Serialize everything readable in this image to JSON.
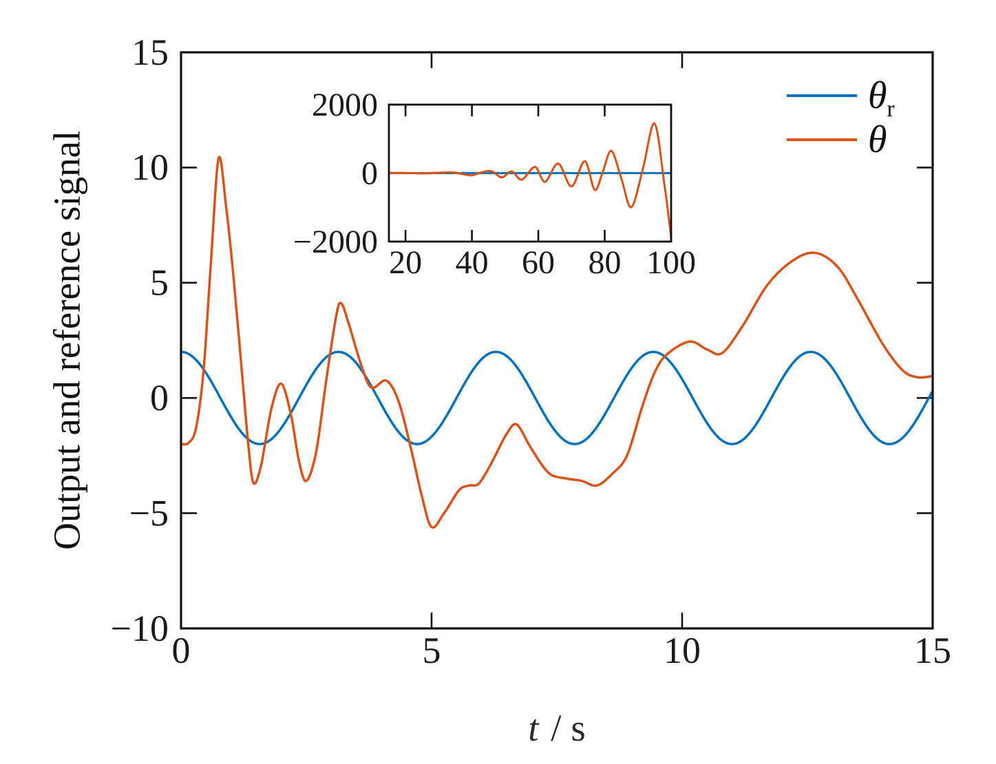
{
  "figure": {
    "ylabel": "Output and reference signal",
    "xlabel_var": "t",
    "xlabel_rest": " / s",
    "background": "#ffffff",
    "axis_color": "#111111"
  },
  "legend": {
    "position": "top-right-inside",
    "frame": false,
    "entries": [
      {
        "label": "θ",
        "subscript": "r",
        "color": "#0072BD",
        "series": "reference"
      },
      {
        "label": "θ",
        "subscript": "",
        "color": "#D95319",
        "series": "output"
      }
    ]
  },
  "chart_data": [
    {
      "id": "main",
      "type": "line",
      "title": "",
      "xlabel": "t / s",
      "ylabel": "Output and reference signal",
      "xlim": [
        0,
        15
      ],
      "ylim": [
        -10,
        15
      ],
      "xticks": [
        0,
        5,
        10,
        15
      ],
      "yticks": [
        15,
        10,
        5,
        0,
        -5,
        -10
      ],
      "grid": false,
      "series": [
        {
          "key": "reference",
          "name": "θr (reference signal)",
          "color": "#0072BD",
          "model": "cosine",
          "amplitude": 2,
          "omega": 2,
          "phase": 0
        },
        {
          "key": "output",
          "name": "θ (output signal)",
          "color": "#D95319",
          "model": "spline",
          "points": [
            [
              0,
              -2.0
            ],
            [
              0.15,
              -1.95
            ],
            [
              0.3,
              -1.3
            ],
            [
              0.45,
              1.2
            ],
            [
              0.6,
              6.0
            ],
            [
              0.75,
              10.4
            ],
            [
              0.9,
              8.3
            ],
            [
              1.05,
              5.2
            ],
            [
              1.2,
              1.5
            ],
            [
              1.35,
              -2.2
            ],
            [
              1.45,
              -3.7
            ],
            [
              1.6,
              -2.9
            ],
            [
              1.8,
              -0.5
            ],
            [
              2.0,
              0.62
            ],
            [
              2.2,
              -0.8
            ],
            [
              2.35,
              -2.7
            ],
            [
              2.5,
              -3.6
            ],
            [
              2.7,
              -2.3
            ],
            [
              2.9,
              0.8
            ],
            [
              3.1,
              3.6
            ],
            [
              3.2,
              4.1
            ],
            [
              3.35,
              3.2
            ],
            [
              3.6,
              1.4
            ],
            [
              3.8,
              0.45
            ],
            [
              4.1,
              0.75
            ],
            [
              4.35,
              -0.2
            ],
            [
              4.6,
              -2.3
            ],
            [
              4.8,
              -4.2
            ],
            [
              5.0,
              -5.6
            ],
            [
              5.25,
              -5.0
            ],
            [
              5.55,
              -4.0
            ],
            [
              5.75,
              -3.8
            ],
            [
              5.95,
              -3.7
            ],
            [
              6.2,
              -2.8
            ],
            [
              6.5,
              -1.55
            ],
            [
              6.7,
              -1.15
            ],
            [
              6.95,
              -2.05
            ],
            [
              7.2,
              -2.9
            ],
            [
              7.4,
              -3.35
            ],
            [
              7.7,
              -3.5
            ],
            [
              8.0,
              -3.6
            ],
            [
              8.3,
              -3.8
            ],
            [
              8.6,
              -3.3
            ],
            [
              8.9,
              -2.5
            ],
            [
              9.2,
              -0.4
            ],
            [
              9.45,
              1.1
            ],
            [
              9.7,
              1.9
            ],
            [
              10.15,
              2.45
            ],
            [
              10.5,
              2.1
            ],
            [
              10.8,
              1.95
            ],
            [
              11.2,
              3.1
            ],
            [
              11.7,
              4.9
            ],
            [
              12.2,
              5.95
            ],
            [
              12.65,
              6.3
            ],
            [
              13.1,
              5.7
            ],
            [
              13.5,
              4.3
            ],
            [
              14.0,
              2.35
            ],
            [
              14.4,
              1.2
            ],
            [
              14.7,
              0.9
            ],
            [
              15,
              0.95
            ]
          ]
        }
      ]
    },
    {
      "id": "inset",
      "type": "line",
      "title": "",
      "xlabel": "",
      "ylabel": "",
      "xlim": [
        15,
        100
      ],
      "ylim": [
        -2000,
        2000
      ],
      "xticks": [
        20,
        40,
        60,
        80,
        100
      ],
      "yticks": [
        2000,
        0,
        -2000
      ],
      "grid": false,
      "series": [
        {
          "key": "reference",
          "name": "θr (reference signal)",
          "color": "#0072BD",
          "model": "cosine",
          "amplitude": 2,
          "omega": 2,
          "phase": 0
        },
        {
          "key": "output",
          "name": "θ (output signal)",
          "color": "#D95319",
          "model": "spline",
          "points": [
            [
              15,
              3
            ],
            [
              20,
              5
            ],
            [
              25,
              -8
            ],
            [
              30,
              10
            ],
            [
              34,
              22
            ],
            [
              37,
              -25
            ],
            [
              40,
              -65
            ],
            [
              43,
              25
            ],
            [
              46,
              52
            ],
            [
              49,
              -125
            ],
            [
              52,
              50
            ],
            [
              55,
              -190
            ],
            [
              59,
              180
            ],
            [
              62,
              -255
            ],
            [
              66,
              280
            ],
            [
              70,
              -390
            ],
            [
              74,
              350
            ],
            [
              77,
              -490
            ],
            [
              79.5,
              60
            ],
            [
              82,
              650
            ],
            [
              85,
              -150
            ],
            [
              88,
              -995
            ],
            [
              91.5,
              120
            ],
            [
              95,
              1450
            ],
            [
              98,
              -350
            ],
            [
              100,
              -1870
            ]
          ]
        }
      ]
    }
  ]
}
